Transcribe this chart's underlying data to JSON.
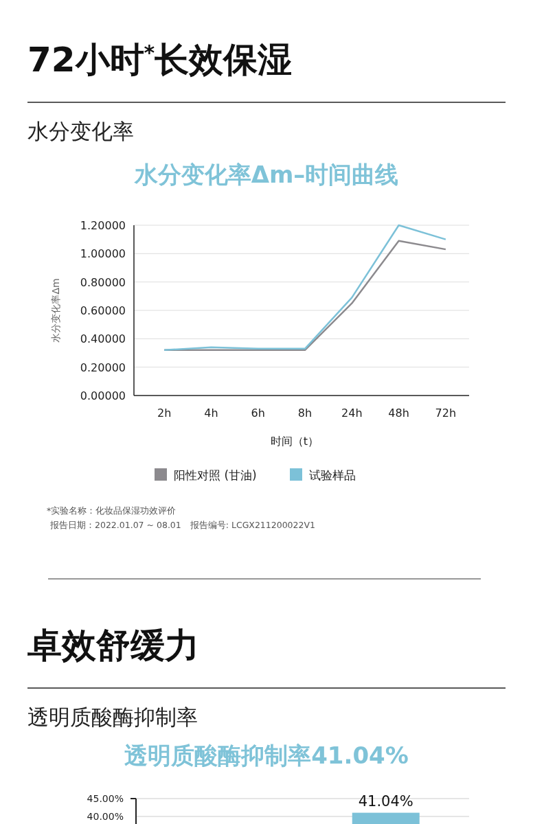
{
  "chart_data": [
    {
      "type": "line",
      "title": "水分变化率Δm–时间曲线",
      "ylabel": "水分变化率Δm",
      "xlabel": "时间（t）",
      "categories": [
        "2h",
        "4h",
        "6h",
        "8h",
        "24h",
        "48h",
        "72h"
      ],
      "series": [
        {
          "name": "阳性对照 (甘油)",
          "color": "#8c8a8e",
          "values": [
            0.32,
            0.32,
            0.32,
            0.32,
            0.65,
            1.09,
            1.03
          ]
        },
        {
          "name": "试验样品",
          "color": "#7cc1d8",
          "values": [
            0.32,
            0.34,
            0.33,
            0.33,
            0.69,
            1.2,
            1.1
          ]
        }
      ],
      "ylim": [
        0,
        1.2
      ],
      "yticks": [
        {
          "value": 0,
          "label": "0.00000"
        },
        {
          "value": 0.2,
          "label": "0.20000"
        },
        {
          "value": 0.4,
          "label": "0.40000"
        },
        {
          "value": 0.6,
          "label": "0.60000"
        },
        {
          "value": 0.8,
          "label": "0.80000"
        },
        {
          "value": 1.0,
          "label": "1.00000"
        },
        {
          "value": 1.2,
          "label": "1.20000"
        }
      ],
      "grid": "y",
      "legend": "bottom",
      "annotations": [
        "72小时$^{*}$长效保湿",
        "水分变化率",
        "*实验名称：化妆品保湿功效评价",
        "报告日期：2022.01.07 ~ 08.01　报告编号: LCGX211200022V1"
      ]
    },
    {
      "type": "bar",
      "title": "透明质酸酶抑制率41.04%",
      "categories": [
        null,
        null
      ],
      "values": [
        null,
        41.04
      ],
      "color": "#7cc1d8",
      "value_labels": [
        null,
        "41.04%"
      ],
      "ylim": [
        0,
        45
      ],
      "yticks": [
        {
          "value": 40,
          "label": "40.00%"
        },
        {
          "value": 45,
          "label": "45.00%"
        }
      ],
      "grid": "y",
      "annotations": [
        "卓效舒缓力",
        "透明质酸酶抑制率"
      ]
    }
  ]
}
